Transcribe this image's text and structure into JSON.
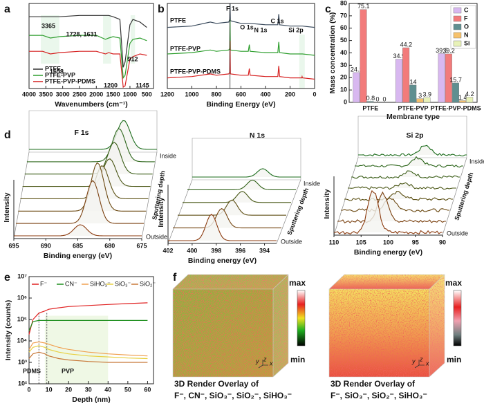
{
  "chart_data": [
    {
      "type": "line",
      "x": [
        4000,
        3600,
        3365,
        3100,
        2500,
        2000,
        1728,
        1631,
        1500,
        1300,
        1200,
        1145,
        1000,
        912,
        700,
        500
      ],
      "xlim": [
        4000,
        300
      ],
      "xticks": [
        4000,
        3500,
        3000,
        2500,
        2000,
        1500,
        1000,
        500
      ],
      "ylim": [
        0,
        3.2
      ],
      "xlabel": "Wavenumbers (cm⁻¹)",
      "legend": "lower left",
      "annotations": [
        "3365",
        "1728, 1631",
        "1658",
        "912",
        "1200",
        "1145"
      ],
      "series": [
        {
          "name": "PTFE",
          "color": "#333333",
          "values": [
            2.7,
            2.7,
            2.7,
            2.7,
            2.75,
            2.75,
            2.75,
            2.75,
            2.7,
            2.6,
            0.8,
            1.0,
            2.4,
            2.6,
            2.5,
            2.3
          ]
        },
        {
          "name": "PTFE-PVP",
          "color": "#2e9e2e",
          "values": [
            2.0,
            2.0,
            1.9,
            1.95,
            2.0,
            2.0,
            1.85,
            1.9,
            1.95,
            1.9,
            0.4,
            0.5,
            1.7,
            1.85,
            1.9,
            1.8
          ]
        },
        {
          "name": "PTFE-PVP-PDMS",
          "color": "#d62020",
          "values": [
            1.4,
            1.4,
            1.3,
            1.35,
            1.4,
            1.4,
            1.3,
            1.35,
            1.3,
            1.3,
            0.05,
            0.1,
            1.1,
            1.2,
            1.3,
            1.25
          ]
        }
      ]
    },
    {
      "type": "line",
      "x": [
        1200,
        1000,
        850,
        800,
        700,
        692,
        689,
        686,
        600,
        540,
        532,
        525,
        400,
        300,
        292,
        285,
        200,
        105,
        102,
        99,
        0
      ],
      "xlim": [
        1200,
        0
      ],
      "xticks": [
        1200,
        1000,
        800,
        600,
        400,
        200,
        0
      ],
      "ylim": [
        0,
        3.2
      ],
      "xlabel": "Binding Energy (eV)",
      "annotations": [
        "F 1s",
        "O 1s",
        "N 1s",
        "C 1s",
        "Si 2p"
      ],
      "series": [
        {
          "name": "PTFE",
          "color": "#3a4a5c",
          "values": [
            2.3,
            2.35,
            2.5,
            2.45,
            2.5,
            2.6,
            3.2,
            2.55,
            2.45,
            2.45,
            2.45,
            2.45,
            2.4,
            2.4,
            2.8,
            2.4,
            2.35,
            2.35,
            2.35,
            2.35,
            2.3
          ]
        },
        {
          "name": "PTFE-PVP",
          "color": "#2e9e2e",
          "values": [
            1.3,
            1.35,
            1.45,
            1.4,
            1.45,
            1.5,
            2.6,
            1.45,
            1.4,
            1.4,
            1.65,
            1.4,
            1.35,
            1.35,
            1.75,
            1.35,
            1.3,
            1.3,
            1.3,
            1.3,
            1.25
          ]
        },
        {
          "name": "PTFE-PVP-PDMS",
          "color": "#d62020",
          "values": [
            0.4,
            0.45,
            0.55,
            0.5,
            0.55,
            0.6,
            1.8,
            0.55,
            0.5,
            0.5,
            0.75,
            0.5,
            0.45,
            0.45,
            0.85,
            0.45,
            0.4,
            0.4,
            0.45,
            0.4,
            0.35
          ]
        }
      ]
    },
    {
      "type": "bar",
      "categories": [
        "PTFE",
        "PTFE-PVP",
        "PTFE-PVP-PDMS"
      ],
      "ylim": [
        0,
        80
      ],
      "yticks": [
        0,
        10,
        20,
        30,
        40,
        50,
        60,
        70,
        80
      ],
      "ylabel": "Mass concentration (%)",
      "xlabel": "Membrane type",
      "legend": "upper right",
      "series": [
        {
          "name": "C",
          "color": "#d8b8f0",
          "values": [
            24.1,
            34.9,
            39.5
          ]
        },
        {
          "name": "F",
          "color": "#f27b7b",
          "values": [
            75.1,
            44.2,
            39.2
          ]
        },
        {
          "name": "O",
          "color": "#5f8f90",
          "values": [
            0.8,
            14,
            15.7
          ]
        },
        {
          "name": "N",
          "color": "#f6c16b",
          "values": [
            0,
            3,
            1.4
          ]
        },
        {
          "name": "Si",
          "color": "#e8f2b8",
          "values": [
            0,
            3.9,
            4.2
          ]
        }
      ]
    },
    {
      "type": "line",
      "log": true,
      "x": [
        0,
        2,
        5,
        8,
        10,
        15,
        20,
        30,
        40,
        50,
        60
      ],
      "xlim": [
        0,
        63
      ],
      "xticks": [
        0,
        10,
        20,
        30,
        40,
        50,
        60
      ],
      "ylim": [
        100,
        10000000
      ],
      "yticks": [
        {
          "value": 100,
          "label": "10²"
        },
        {
          "value": 1000,
          "label": "10³"
        },
        {
          "value": 10000,
          "label": "10⁴"
        },
        {
          "value": 100000,
          "label": "10⁵"
        },
        {
          "value": 1000000,
          "label": "10⁶"
        },
        {
          "value": 10000000,
          "label": "10⁷"
        }
      ],
      "xlabel": "Depth (nm)",
      "ylabel": "Intensity (counts)",
      "legend": "top",
      "annotations": [
        "PDMS",
        "PVP"
      ],
      "series": [
        {
          "name": "F⁻",
          "color": "#e02020",
          "values": [
            20000,
            100000,
            200000,
            250000,
            300000,
            350000,
            400000,
            450000,
            500000,
            550000,
            600000
          ]
        },
        {
          "name": "CN⁻",
          "color": "#1f8f1f",
          "values": [
            30000,
            80000,
            90000,
            90000,
            90000,
            90000,
            90000,
            90000,
            90000,
            90000,
            90000
          ]
        },
        {
          "name": "SiHO₃⁻",
          "color": "#f0a050",
          "values": [
            4000,
            8000,
            9000,
            8000,
            7000,
            5000,
            4000,
            3000,
            2500,
            2200,
            2000
          ]
        },
        {
          "name": "SiO₃⁻",
          "color": "#e8d040",
          "values": [
            3000,
            5000,
            6000,
            5000,
            4000,
            3000,
            2500,
            2000,
            1800,
            1600,
            1500
          ]
        },
        {
          "name": "SiO₂⁻",
          "color": "#c87838",
          "values": [
            1500,
            2500,
            3000,
            2500,
            2000,
            1500,
            1300,
            1100,
            1000,
            1000,
            1000
          ]
        }
      ]
    }
  ],
  "figure": {
    "panel_labels": [
      "a",
      "b",
      "c",
      "d",
      "e",
      "f"
    ],
    "d": [
      {
        "title": "F 1s",
        "xlim": [
          695,
          675
        ],
        "xticks": [
          695,
          690,
          685,
          680,
          675
        ],
        "xlabel": "Binding energy (eV)",
        "ylabel": "Intensity",
        "depth_label": "Sputtering depth",
        "outside": "Outside",
        "inside": "Inside"
      },
      {
        "title": "N 1s",
        "xlim": [
          402,
          393
        ],
        "xticks": [
          402,
          400,
          398,
          396,
          394
        ],
        "xlabel": "Binding energy (eV)",
        "ylabel": "Intensity",
        "depth_label": "Sputtering depth",
        "outside": "Outside",
        "inside": "Inside"
      },
      {
        "title": "Si 2p",
        "xlim": [
          110,
          90
        ],
        "xticks": [
          110,
          105,
          100,
          95,
          90
        ],
        "xlabel": "Binding energy (eV)",
        "ylabel": "Intensity",
        "depth_label": "Sputtering depth",
        "outside": "Outside",
        "inside": "Inside"
      }
    ],
    "f": {
      "max": "max",
      "min": "min",
      "axes": [
        "y",
        "z",
        "x"
      ],
      "captions": [
        [
          "3D Render Overlay of",
          "F⁻, CN⁻, SiO₃⁻, SiO₂⁻, SiHO₃⁻"
        ],
        [
          "3D Render Overlay of",
          "F⁻, SiO₃⁻, SiO₂⁻, SiHO₃⁻"
        ]
      ]
    }
  }
}
